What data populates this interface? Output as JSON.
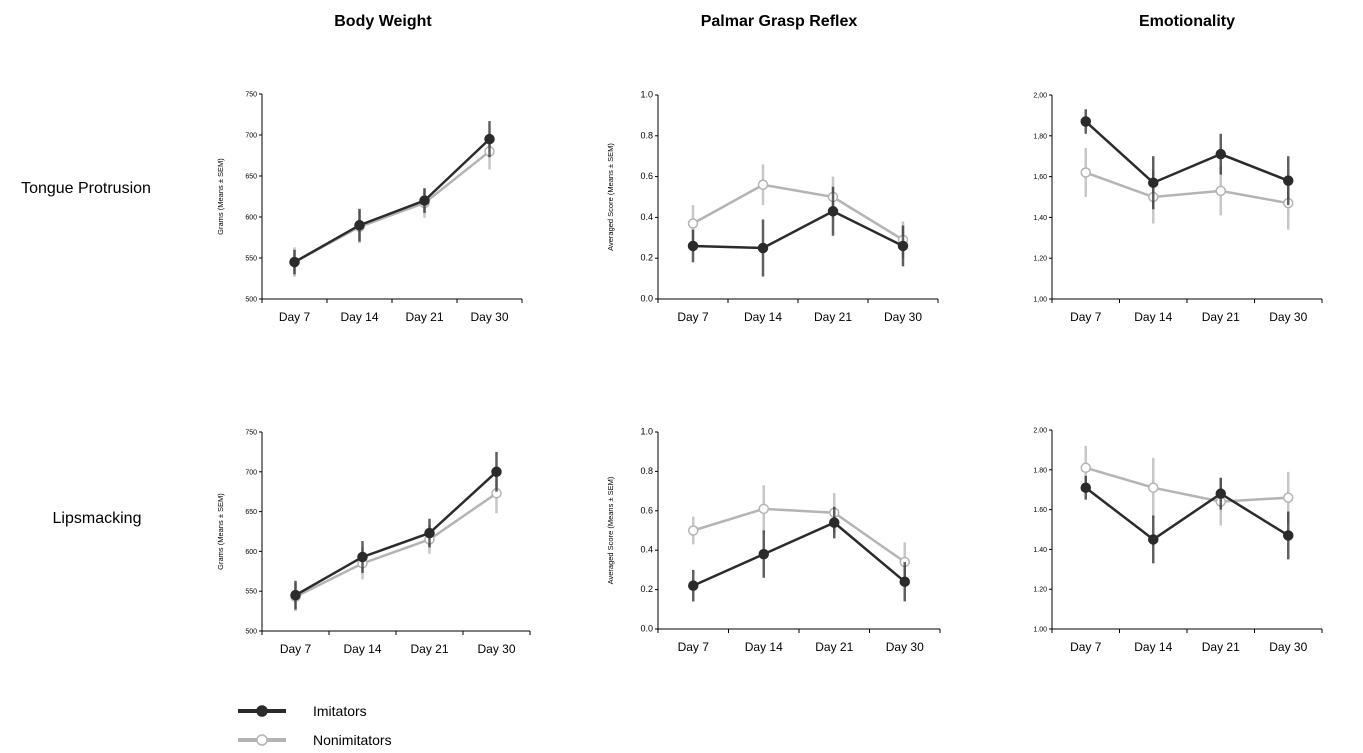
{
  "colors": {
    "imitators": "#2b2b2b",
    "nonimitators": "#b4b4b4",
    "axis": "#000000"
  },
  "figure": {
    "column_titles": [
      "Body Weight",
      "Palmar Grasp Reflex",
      "Emotionality"
    ],
    "row_labels": [
      "Tongue Protrusion",
      "Lipsmacking"
    ],
    "legend": {
      "imitators": "Imitators",
      "nonimitators": "Nonimitators"
    }
  },
  "chart_data": [
    {
      "type": "line",
      "row": "Tongue Protrusion",
      "column": "Body Weight",
      "categories": [
        "Day 7",
        "Day 14",
        "Day 21",
        "Day 30"
      ],
      "ylabel": "Grams (Means ± SEM)",
      "ylim": [
        500,
        750
      ],
      "yticks": [
        "500",
        "550",
        "600",
        "650",
        "700",
        "750"
      ],
      "series": [
        {
          "name": "Imitators",
          "values": [
            545,
            590,
            620,
            695
          ],
          "sem": [
            15,
            20,
            15,
            22
          ]
        },
        {
          "name": "Nonimitators",
          "values": [
            545,
            588,
            617,
            680
          ],
          "sem": [
            18,
            20,
            18,
            22
          ]
        }
      ]
    },
    {
      "type": "line",
      "row": "Tongue Protrusion",
      "column": "Palmar Grasp Reflex",
      "categories": [
        "Day 7",
        "Day 14",
        "Day 21",
        "Day 30"
      ],
      "ylabel": "Averaged Score (Means ± SEM)",
      "ylim": [
        0,
        1
      ],
      "yticks": [
        "0.0",
        "0.2",
        "0.4",
        "0.6",
        "0.8",
        "1.0"
      ],
      "series": [
        {
          "name": "Imitators",
          "values": [
            0.26,
            0.25,
            0.43,
            0.26
          ],
          "sem": [
            0.08,
            0.14,
            0.12,
            0.1
          ]
        },
        {
          "name": "Nonimitators",
          "values": [
            0.37,
            0.56,
            0.5,
            0.29
          ],
          "sem": [
            0.09,
            0.1,
            0.1,
            0.09
          ]
        }
      ]
    },
    {
      "type": "line",
      "row": "Tongue Protrusion",
      "column": "Emotionality",
      "categories": [
        "Day 7",
        "Day 14",
        "Day 21",
        "Day 30"
      ],
      "ylabel": "",
      "ylim": [
        1.0,
        2.0
      ],
      "yticks": [
        "1,00",
        "1,20",
        "1,40",
        "1,60",
        "1,80",
        "2,00"
      ],
      "series": [
        {
          "name": "Imitators",
          "values": [
            1.87,
            1.57,
            1.71,
            1.58
          ],
          "sem": [
            0.06,
            0.13,
            0.1,
            0.12
          ]
        },
        {
          "name": "Nonimitators",
          "values": [
            1.62,
            1.5,
            1.53,
            1.47
          ],
          "sem": [
            0.12,
            0.13,
            0.12,
            0.13
          ]
        }
      ]
    },
    {
      "type": "line",
      "row": "Lipsmacking",
      "column": "Body Weight",
      "categories": [
        "Day 7",
        "Day 14",
        "Day 21",
        "Day 30"
      ],
      "ylabel": "Grams (Means ± SEM)",
      "ylim": [
        500,
        750
      ],
      "yticks": [
        "500",
        "550",
        "600",
        "650",
        "700",
        "750"
      ],
      "series": [
        {
          "name": "Imitators",
          "values": [
            545,
            593,
            623,
            700
          ],
          "sem": [
            18,
            20,
            18,
            25
          ]
        },
        {
          "name": "Nonimitators",
          "values": [
            543,
            585,
            615,
            673
          ],
          "sem": [
            18,
            20,
            18,
            25
          ]
        }
      ]
    },
    {
      "type": "line",
      "row": "Lipsmacking",
      "column": "Palmar Grasp Reflex",
      "categories": [
        "Day 7",
        "Day 14",
        "Day 21",
        "Day 30"
      ],
      "ylabel": "Averaged Score (Means ± SEM)",
      "ylim": [
        0,
        1
      ],
      "yticks": [
        "0.0",
        "0.2",
        "0.4",
        "0.6",
        "0.8",
        "1.0"
      ],
      "series": [
        {
          "name": "Imitators",
          "values": [
            0.22,
            0.38,
            0.54,
            0.24
          ],
          "sem": [
            0.08,
            0.12,
            0.08,
            0.1
          ]
        },
        {
          "name": "Nonimitators",
          "values": [
            0.5,
            0.61,
            0.59,
            0.34
          ],
          "sem": [
            0.07,
            0.12,
            0.1,
            0.1
          ]
        }
      ]
    },
    {
      "type": "line",
      "row": "Lipsmacking",
      "column": "Emotionality",
      "categories": [
        "Day 7",
        "Day 14",
        "Day 21",
        "Day 30"
      ],
      "ylabel": "",
      "ylim": [
        1.0,
        2.0
      ],
      "yticks": [
        "1.00",
        "1.20",
        "1.40",
        "1.60",
        "1.80",
        "2.00"
      ],
      "series": [
        {
          "name": "Imitators",
          "values": [
            1.71,
            1.45,
            1.68,
            1.47
          ],
          "sem": [
            0.06,
            0.12,
            0.08,
            0.12
          ]
        },
        {
          "name": "Nonimitators",
          "values": [
            1.81,
            1.71,
            1.64,
            1.66
          ],
          "sem": [
            0.11,
            0.15,
            0.12,
            0.13
          ]
        }
      ]
    }
  ]
}
